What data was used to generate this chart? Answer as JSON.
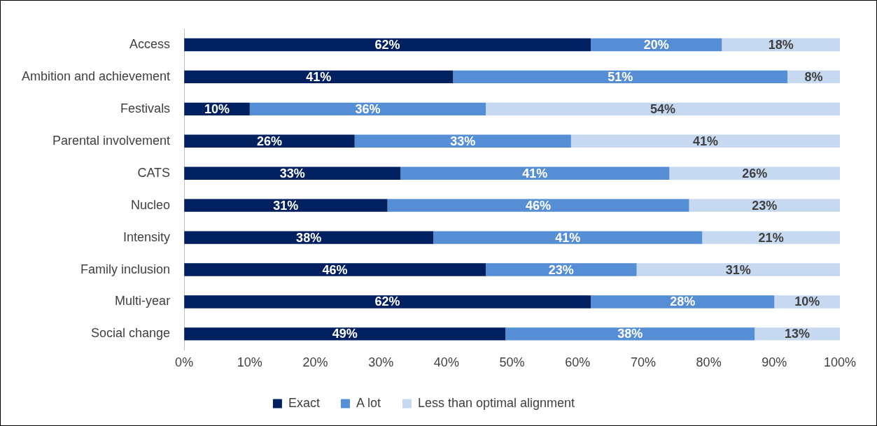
{
  "chart_data": {
    "type": "bar",
    "orientation": "horizontal",
    "stacked": true,
    "categories": [
      "Access",
      "Ambition and achievement",
      "Festivals",
      "Parental involvement",
      "CATS",
      "Nucleo",
      "Intensity",
      "Family inclusion",
      "Multi-year",
      "Social change"
    ],
    "series": [
      {
        "name": "Exact",
        "color": "#002060",
        "values": [
          62,
          41,
          10,
          26,
          33,
          31,
          38,
          46,
          62,
          49
        ],
        "value_labels": [
          "62%",
          "41%",
          "10%",
          "26%",
          "33%",
          "31%",
          "38%",
          "46%",
          "62%",
          "49%"
        ]
      },
      {
        "name": "A lot",
        "color": "#558ed5",
        "values": [
          20,
          51,
          36,
          33,
          41,
          46,
          41,
          23,
          28,
          38
        ],
        "value_labels": [
          "20%",
          "51%",
          "36%",
          "33%",
          "41%",
          "46%",
          "41%",
          "23%",
          "28%",
          "38%"
        ]
      },
      {
        "name": "Less than optimal alignment",
        "color": "#c6d9f1",
        "values": [
          18,
          8,
          54,
          41,
          26,
          23,
          21,
          31,
          10,
          13
        ],
        "value_labels": [
          "18%",
          "8%",
          "54%",
          "41%",
          "26%",
          "23%",
          "21%",
          "31%",
          "10%",
          "13%"
        ]
      }
    ],
    "xlim": [
      0,
      100
    ],
    "xticks": [
      {
        "value": 0,
        "label": "0%"
      },
      {
        "value": 10,
        "label": "10%"
      },
      {
        "value": 20,
        "label": "20%"
      },
      {
        "value": 30,
        "label": "30%"
      },
      {
        "value": 40,
        "label": "40%"
      },
      {
        "value": 50,
        "label": "50%"
      },
      {
        "value": 60,
        "label": "60%"
      },
      {
        "value": 70,
        "label": "70%"
      },
      {
        "value": 80,
        "label": "80%"
      },
      {
        "value": 90,
        "label": "90%"
      },
      {
        "value": 100,
        "label": "100%"
      }
    ],
    "grid": false,
    "legend": "bottom"
  }
}
